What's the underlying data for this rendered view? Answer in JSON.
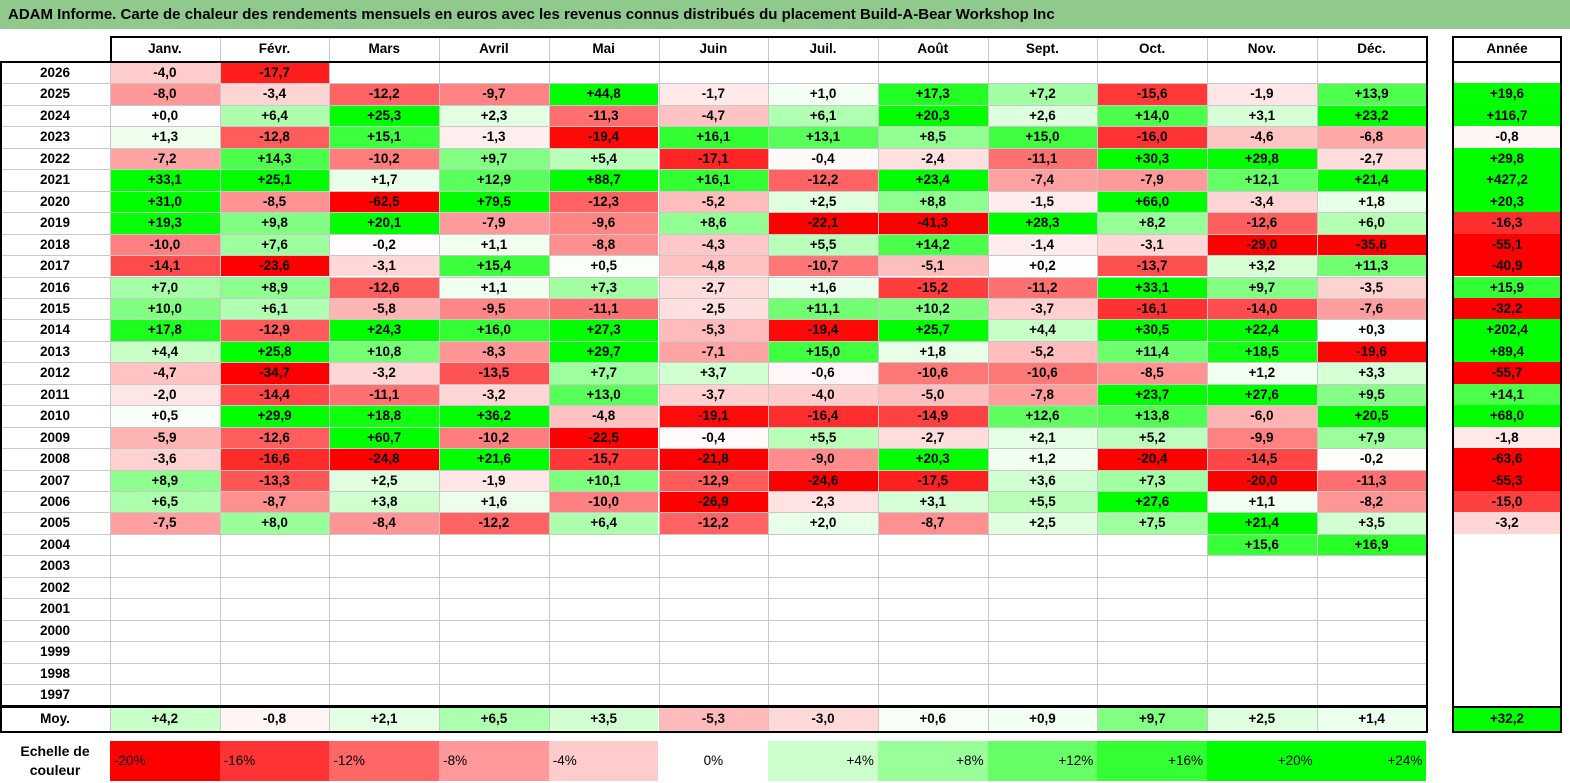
{
  "title": "ADAM Informe. Carte de chaleur des rendements mensuels en euros avec les revenus connus distribués du placement Build-A-Bear Workshop Inc",
  "chart_data": {
    "type": "heatmap",
    "title": "ADAM Informe. Carte de chaleur des rendements mensuels en euros avec les revenus connus distribués du placement Build-A-Bear Workshop Inc",
    "months": [
      "Janv.",
      "Févr.",
      "Mars",
      "Avril",
      "Mai",
      "Juin",
      "Juil.",
      "Août",
      "Sept.",
      "Oct.",
      "Nov.",
      "Déc."
    ],
    "year_header": "Année",
    "rows": [
      {
        "year": "2026",
        "values": [
          "-4,0",
          "-17,7",
          "",
          "",
          "",
          "",
          "",
          "",
          "",
          "",
          "",
          ""
        ],
        "annual": ""
      },
      {
        "year": "2025",
        "values": [
          "-8,0",
          "-3,4",
          "-12,2",
          "-9,7",
          "+44,8",
          "-1,7",
          "+1,0",
          "+17,3",
          "+7,2",
          "-15,6",
          "-1,9",
          "+13,9"
        ],
        "annual": "+19,6"
      },
      {
        "year": "2024",
        "values": [
          "+0,0",
          "+6,4",
          "+25,3",
          "+2,3",
          "-11,3",
          "-4,7",
          "+6,1",
          "+20,3",
          "+2,6",
          "+14,0",
          "+3,1",
          "+23,2"
        ],
        "annual": "+116,7"
      },
      {
        "year": "2023",
        "values": [
          "+1,3",
          "-12,8",
          "+15,1",
          "-1,3",
          "-19,4",
          "+16,1",
          "+13,1",
          "+8,5",
          "+15,0",
          "-16,0",
          "-4,6",
          "-6,8"
        ],
        "annual": "-0,8"
      },
      {
        "year": "2022",
        "values": [
          "-7,2",
          "+14,3",
          "-10,2",
          "+9,7",
          "+5,4",
          "-17,1",
          "-0,4",
          "-2,4",
          "-11,1",
          "+30,3",
          "+29,8",
          "-2,7"
        ],
        "annual": "+29,8"
      },
      {
        "year": "2021",
        "values": [
          "+33,1",
          "+25,1",
          "+1,7",
          "+12,9",
          "+88,7",
          "+16,1",
          "-12,2",
          "+23,4",
          "-7,4",
          "-7,9",
          "+12,1",
          "+21,4"
        ],
        "annual": "+427,2"
      },
      {
        "year": "2020",
        "values": [
          "+31,0",
          "-8,5",
          "-62,5",
          "+79,5",
          "-12,3",
          "-5,2",
          "+2,5",
          "+8,8",
          "-1,5",
          "+66,0",
          "-3,4",
          "+1,8"
        ],
        "annual": "+20,3"
      },
      {
        "year": "2019",
        "values": [
          "+19,3",
          "+9,8",
          "+20,1",
          "-7,9",
          "-9,6",
          "+8,6",
          "-22,1",
          "-41,3",
          "+28,3",
          "+8,2",
          "-12,6",
          "+6,0"
        ],
        "annual": "-16,3"
      },
      {
        "year": "2018",
        "values": [
          "-10,0",
          "+7,6",
          "-0,2",
          "+1,1",
          "-8,8",
          "-4,3",
          "+5,5",
          "+14,2",
          "-1,4",
          "-3,1",
          "-29,0",
          "-35,6"
        ],
        "annual": "-55,1"
      },
      {
        "year": "2017",
        "values": [
          "-14,1",
          "-23,6",
          "-3,1",
          "+15,4",
          "+0,5",
          "-4,8",
          "-10,7",
          "-5,1",
          "+0,2",
          "-13,7",
          "+3,2",
          "+11,3"
        ],
        "annual": "-40,9"
      },
      {
        "year": "2016",
        "values": [
          "+7,0",
          "+8,9",
          "-12,6",
          "+1,1",
          "+7,3",
          "-2,7",
          "+1,6",
          "-15,2",
          "-11,2",
          "+33,1",
          "+9,7",
          "-3,5"
        ],
        "annual": "+15,9"
      },
      {
        "year": "2015",
        "values": [
          "+10,0",
          "+6,1",
          "-5,8",
          "-9,5",
          "-11,1",
          "-2,5",
          "+11,1",
          "+10,2",
          "-3,7",
          "-16,1",
          "-14,0",
          "-7,6"
        ],
        "annual": "-32,2"
      },
      {
        "year": "2014",
        "values": [
          "+17,8",
          "-12,9",
          "+24,3",
          "+16,0",
          "+27,3",
          "-5,3",
          "-19,4",
          "+25,7",
          "+4,4",
          "+30,5",
          "+22,4",
          "+0,3"
        ],
        "annual": "+202,4"
      },
      {
        "year": "2013",
        "values": [
          "+4,4",
          "+25,8",
          "+10,8",
          "-8,3",
          "+29,7",
          "-7,1",
          "+15,0",
          "+1,8",
          "-5,2",
          "+11,4",
          "+18,5",
          "-19,6"
        ],
        "annual": "+89,4"
      },
      {
        "year": "2012",
        "values": [
          "-4,7",
          "-34,7",
          "-3,2",
          "-13,5",
          "+7,7",
          "+3,7",
          "-0,6",
          "-10,6",
          "-10,6",
          "-8,5",
          "+1,2",
          "+3,3"
        ],
        "annual": "-55,7"
      },
      {
        "year": "2011",
        "values": [
          "-2,0",
          "-14,4",
          "-11,1",
          "-3,2",
          "+13,0",
          "-3,7",
          "-4,0",
          "-5,0",
          "-7,8",
          "+23,7",
          "+27,6",
          "+9,5"
        ],
        "annual": "+14,1"
      },
      {
        "year": "2010",
        "values": [
          "+0,5",
          "+29,9",
          "+18,8",
          "+36,2",
          "-4,8",
          "-19,1",
          "-16,4",
          "-14,9",
          "+12,6",
          "+13,8",
          "-6,0",
          "+20,5"
        ],
        "annual": "+68,0"
      },
      {
        "year": "2009",
        "values": [
          "-5,9",
          "-12,6",
          "+60,7",
          "-10,2",
          "-22,5",
          "-0,4",
          "+5,5",
          "-2,7",
          "+2,1",
          "+5,2",
          "-9,9",
          "+7,9"
        ],
        "annual": "-1,8"
      },
      {
        "year": "2008",
        "values": [
          "-3,6",
          "-16,6",
          "-24,8",
          "+21,6",
          "-15,7",
          "-21,8",
          "-9,0",
          "+20,3",
          "+1,2",
          "-20,4",
          "-14,5",
          "-0,2"
        ],
        "annual": "-63,6"
      },
      {
        "year": "2007",
        "values": [
          "+8,9",
          "-13,3",
          "+2,5",
          "-1,9",
          "+10,1",
          "-12,9",
          "-24,6",
          "-17,5",
          "+3,6",
          "+7,3",
          "-20,0",
          "-11,3"
        ],
        "annual": "-55,3"
      },
      {
        "year": "2006",
        "values": [
          "+6,5",
          "-8,7",
          "+3,8",
          "+1,6",
          "-10,0",
          "-26,9",
          "-2,3",
          "+3,1",
          "+5,5",
          "+27,6",
          "+1,1",
          "-8,2"
        ],
        "annual": "-15,0"
      },
      {
        "year": "2005",
        "values": [
          "-7,5",
          "+8,0",
          "-8,4",
          "-12,2",
          "+6,4",
          "-12,2",
          "+2,0",
          "-8,7",
          "+2,5",
          "+7,5",
          "+21,4",
          "+3,5"
        ],
        "annual": "-3,2"
      },
      {
        "year": "2004",
        "values": [
          "",
          "",
          "",
          "",
          "",
          "",
          "",
          "",
          "",
          "",
          "+15,6",
          "+16,9"
        ],
        "annual": ""
      },
      {
        "year": "2003",
        "values": [
          "",
          "",
          "",
          "",
          "",
          "",
          "",
          "",
          "",
          "",
          "",
          ""
        ],
        "annual": ""
      },
      {
        "year": "2002",
        "values": [
          "",
          "",
          "",
          "",
          "",
          "",
          "",
          "",
          "",
          "",
          "",
          ""
        ],
        "annual": ""
      },
      {
        "year": "2001",
        "values": [
          "",
          "",
          "",
          "",
          "",
          "",
          "",
          "",
          "",
          "",
          "",
          ""
        ],
        "annual": ""
      },
      {
        "year": "2000",
        "values": [
          "",
          "",
          "",
          "",
          "",
          "",
          "",
          "",
          "",
          "",
          "",
          ""
        ],
        "annual": ""
      },
      {
        "year": "1999",
        "values": [
          "",
          "",
          "",
          "",
          "",
          "",
          "",
          "",
          "",
          "",
          "",
          ""
        ],
        "annual": ""
      },
      {
        "year": "1998",
        "values": [
          "",
          "",
          "",
          "",
          "",
          "",
          "",
          "",
          "",
          "",
          "",
          ""
        ],
        "annual": ""
      },
      {
        "year": "1997",
        "values": [
          "",
          "",
          "",
          "",
          "",
          "",
          "",
          "",
          "",
          "",
          "",
          ""
        ],
        "annual": ""
      }
    ],
    "average": {
      "label": "Moy.",
      "values": [
        "+4,2",
        "-0,8",
        "+2,1",
        "+6,5",
        "+3,5",
        "-5,3",
        "-3,0",
        "+0,6",
        "+0,9",
        "+9,7",
        "+2,5",
        "+1,4"
      ],
      "annual": "+32,2"
    },
    "color_scale": {
      "label": "Echelle de couleur",
      "stops": [
        "-20%",
        "-16%",
        "-12%",
        "-8%",
        "-4%",
        "0%",
        "+4%",
        "+8%",
        "+12%",
        "+16%",
        "+20%",
        "+24%"
      ],
      "stop_values": [
        -20,
        -16,
        -12,
        -8,
        -4,
        0,
        4,
        8,
        12,
        16,
        20,
        24
      ],
      "negative_color": "#ff0000",
      "neutral_color": "#ffffff",
      "positive_color": "#00ff00"
    }
  }
}
